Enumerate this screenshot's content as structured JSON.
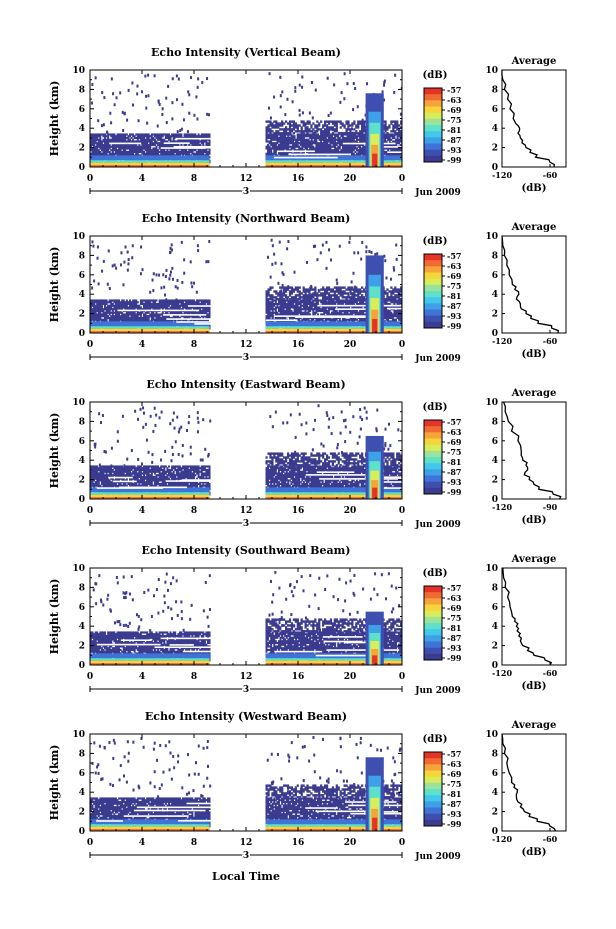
{
  "colors": {
    "scale": [
      "#3b3b8f",
      "#3f4fb0",
      "#3f74d6",
      "#3ea0e6",
      "#40c9ea",
      "#5fe0c8",
      "#9be39b",
      "#d9ec5a",
      "#f5d53a",
      "#f6a43a",
      "#f06a32",
      "#e63328"
    ],
    "ink": "#000000",
    "background": "#ffffff"
  },
  "shared": {
    "xlabel": "Local Time",
    "date_label": "Jun 2009",
    "day_label": "3",
    "colorbar_unit": "(dB)",
    "colorbar_ticks": [
      "-57",
      "-63",
      "-69",
      "-75",
      "-81",
      "-87",
      "-93",
      "-99"
    ],
    "avg_title": "Average",
    "avg_xlabel": "(dB)"
  },
  "chart_data": [
    {
      "type": "heatmap",
      "title": "Echo Intensity (Vertical Beam)",
      "ylabel": "Height (km)",
      "yticks": [
        "0",
        "2",
        "4",
        "6",
        "8",
        "10"
      ],
      "xticks": [
        "0",
        "4",
        "8",
        "12",
        "16",
        "20",
        "0"
      ],
      "ylim": [
        0,
        10
      ],
      "xlim": [
        0,
        24
      ],
      "gap_hours": [
        9.2,
        13.5
      ],
      "peak": {
        "time_h": 21.9,
        "top_km": 7.6
      },
      "average": {
        "xticks": [
          "-120",
          "-60"
        ],
        "xlim": [
          -120,
          -40
        ],
        "yticks": [
          "0",
          "2",
          "4",
          "6",
          "8",
          "10"
        ],
        "profile": [
          [
            0,
            -55
          ],
          [
            0.5,
            -60
          ],
          [
            1,
            -78
          ],
          [
            1.5,
            -85
          ],
          [
            2,
            -90
          ],
          [
            2.5,
            -95
          ],
          [
            3,
            -97
          ],
          [
            3.5,
            -100
          ],
          [
            4,
            -98
          ],
          [
            4.5,
            -103
          ],
          [
            5,
            -106
          ],
          [
            6,
            -110
          ],
          [
            7,
            -113
          ],
          [
            8,
            -117
          ],
          [
            9,
            -119
          ],
          [
            10,
            -120
          ]
        ]
      }
    },
    {
      "type": "heatmap",
      "title": "Echo Intensity (Northward Beam)",
      "ylabel": "Height (km)",
      "yticks": [
        "0",
        "2",
        "4",
        "6",
        "8",
        "10"
      ],
      "xticks": [
        "0",
        "4",
        "8",
        "12",
        "16",
        "20",
        "0"
      ],
      "ylim": [
        0,
        10
      ],
      "xlim": [
        0,
        24
      ],
      "gap_hours": [
        9.2,
        13.5
      ],
      "peak": {
        "time_h": 21.9,
        "top_km": 8.0
      },
      "average": {
        "xticks": [
          "-120",
          "-60"
        ],
        "xlim": [
          -120,
          -40
        ],
        "yticks": [
          "0",
          "2",
          "4",
          "6",
          "8",
          "10"
        ],
        "profile": [
          [
            0,
            -50
          ],
          [
            0.5,
            -58
          ],
          [
            1,
            -75
          ],
          [
            1.5,
            -84
          ],
          [
            2,
            -90
          ],
          [
            2.5,
            -96
          ],
          [
            3,
            -97
          ],
          [
            3.5,
            -102
          ],
          [
            4,
            -99
          ],
          [
            4.5,
            -104
          ],
          [
            5,
            -107
          ],
          [
            6,
            -111
          ],
          [
            7,
            -114
          ],
          [
            8,
            -117
          ],
          [
            9,
            -119
          ],
          [
            10,
            -120
          ]
        ]
      }
    },
    {
      "type": "heatmap",
      "title": "Echo Intensity (Eastward Beam)",
      "ylabel": "Height (km)",
      "yticks": [
        "0",
        "2",
        "4",
        "6",
        "8",
        "10"
      ],
      "xticks": [
        "0",
        "4",
        "8",
        "12",
        "16",
        "20",
        "0"
      ],
      "ylim": [
        0,
        10
      ],
      "xlim": [
        0,
        24
      ],
      "gap_hours": [
        9.2,
        13.5
      ],
      "peak": {
        "time_h": 21.9,
        "top_km": 6.5
      },
      "average": {
        "xticks": [
          "-120",
          "-90"
        ],
        "xlim": [
          -120,
          -80
        ],
        "yticks": [
          "0",
          "2",
          "4",
          "6",
          "8",
          "10"
        ],
        "profile": [
          [
            0,
            -84
          ],
          [
            0.5,
            -88
          ],
          [
            1,
            -97
          ],
          [
            1.5,
            -100
          ],
          [
            2,
            -103
          ],
          [
            2.5,
            -106
          ],
          [
            3,
            -104
          ],
          [
            3.5,
            -105
          ],
          [
            4,
            -107
          ],
          [
            4.5,
            -108
          ],
          [
            5,
            -108
          ],
          [
            6,
            -110
          ],
          [
            7,
            -114
          ],
          [
            8,
            -116
          ],
          [
            9,
            -118
          ],
          [
            10,
            -119
          ]
        ]
      }
    },
    {
      "type": "heatmap",
      "title": "Echo Intensity (Southward Beam)",
      "ylabel": "Height (km)",
      "yticks": [
        "0",
        "2",
        "4",
        "6",
        "8",
        "10"
      ],
      "xticks": [
        "0",
        "4",
        "8",
        "12",
        "16",
        "20",
        "0"
      ],
      "ylim": [
        0,
        10
      ],
      "xlim": [
        0,
        24
      ],
      "gap_hours": [
        9.2,
        13.5
      ],
      "peak": {
        "time_h": 21.9,
        "top_km": 5.5
      },
      "average": {
        "xticks": [
          "-120",
          "-60"
        ],
        "xlim": [
          -120,
          -40
        ],
        "yticks": [
          "0",
          "2",
          "4",
          "6",
          "8",
          "10"
        ],
        "profile": [
          [
            0,
            -60
          ],
          [
            0.5,
            -66
          ],
          [
            1,
            -80
          ],
          [
            1.5,
            -88
          ],
          [
            2,
            -94
          ],
          [
            2.5,
            -97
          ],
          [
            3,
            -99
          ],
          [
            3.5,
            -101
          ],
          [
            4,
            -102
          ],
          [
            4.5,
            -104
          ],
          [
            5,
            -107
          ],
          [
            6,
            -110
          ],
          [
            7,
            -113
          ],
          [
            8,
            -116
          ],
          [
            9,
            -118
          ],
          [
            10,
            -119
          ]
        ]
      }
    },
    {
      "type": "heatmap",
      "title": "Echo Intensity (Westward Beam)",
      "ylabel": "Height (km)",
      "yticks": [
        "0",
        "2",
        "4",
        "6",
        "8",
        "10"
      ],
      "xticks": [
        "0",
        "4",
        "8",
        "12",
        "16",
        "20",
        "0"
      ],
      "ylim": [
        0,
        10
      ],
      "xlim": [
        0,
        24
      ],
      "gap_hours": [
        9.2,
        13.5
      ],
      "peak": {
        "time_h": 21.9,
        "top_km": 7.6
      },
      "average": {
        "xticks": [
          "-120",
          "-60"
        ],
        "xlim": [
          -120,
          -40
        ],
        "yticks": [
          "0",
          "2",
          "4",
          "6",
          "8",
          "10"
        ],
        "profile": [
          [
            0,
            -53
          ],
          [
            0.5,
            -60
          ],
          [
            1,
            -76
          ],
          [
            1.5,
            -86
          ],
          [
            2,
            -92
          ],
          [
            2.5,
            -97
          ],
          [
            3,
            -100
          ],
          [
            3.5,
            -102
          ],
          [
            4,
            -101
          ],
          [
            4.5,
            -105
          ],
          [
            5,
            -108
          ],
          [
            6,
            -111
          ],
          [
            7,
            -114
          ],
          [
            8,
            -117
          ],
          [
            9,
            -119
          ],
          [
            10,
            -120
          ]
        ]
      }
    }
  ]
}
